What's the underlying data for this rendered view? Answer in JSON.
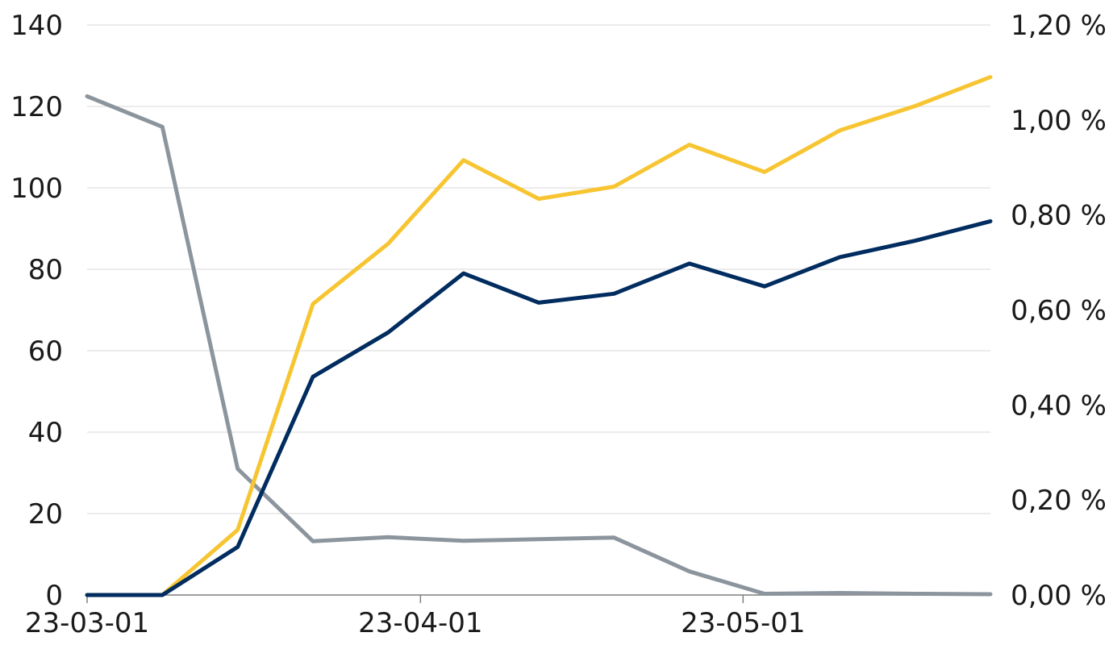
{
  "chart_data": {
    "type": "line",
    "x": [
      "2023-03-01",
      "2023-03-08",
      "2023-03-15",
      "2023-03-22",
      "2023-03-29",
      "2023-04-05",
      "2023-04-12",
      "2023-04-19",
      "2023-04-26",
      "2023-05-03",
      "2023-05-10",
      "2023-05-17",
      "2023-05-24"
    ],
    "x_tick_labels": [
      {
        "date": "2023-03-01",
        "label": "23-03-01"
      },
      {
        "date": "2023-04-01",
        "label": "23-04-01"
      },
      {
        "date": "2023-05-01",
        "label": "23-05-01"
      }
    ],
    "x_range": [
      "2023-03-01",
      "2023-05-24"
    ],
    "y_left": {
      "min": 0,
      "max": 140,
      "ticks": [
        0,
        20,
        40,
        60,
        80,
        100,
        120,
        140
      ],
      "tick_labels": [
        "0",
        "20",
        "40",
        "60",
        "80",
        "100",
        "120",
        "140"
      ]
    },
    "y_right": {
      "min": 0,
      "max": 1.2,
      "ticks": [
        0,
        0.2,
        0.4,
        0.6,
        0.8,
        1.0,
        1.2
      ],
      "tick_labels": [
        "0,00 %",
        "0,20 %",
        "0,40 %",
        "0,60 %",
        "0,80 %",
        "1,00 %",
        "1,20 %"
      ]
    },
    "grid": true,
    "legend": "none",
    "title": "",
    "xlabel": "",
    "ylabel": "",
    "series": [
      {
        "axis": "left",
        "color": "#8c959d",
        "values": [
          122.5,
          115,
          31,
          13.2,
          14.2,
          13.3,
          13.7,
          14.1,
          5.8,
          0.3,
          0.5,
          0.3,
          0.2
        ]
      },
      {
        "axis": "left",
        "color": "#f7c531",
        "values": [
          0,
          0,
          16,
          71.5,
          86.3,
          106.8,
          97.3,
          100.3,
          110.6,
          103.9,
          114.1,
          120.1,
          127.2
        ]
      },
      {
        "axis": "left",
        "color": "#002c5f",
        "values": [
          0,
          0,
          11.8,
          53.6,
          64.5,
          79,
          71.8,
          74,
          81.4,
          75.8,
          83,
          87,
          91.8
        ]
      }
    ]
  }
}
